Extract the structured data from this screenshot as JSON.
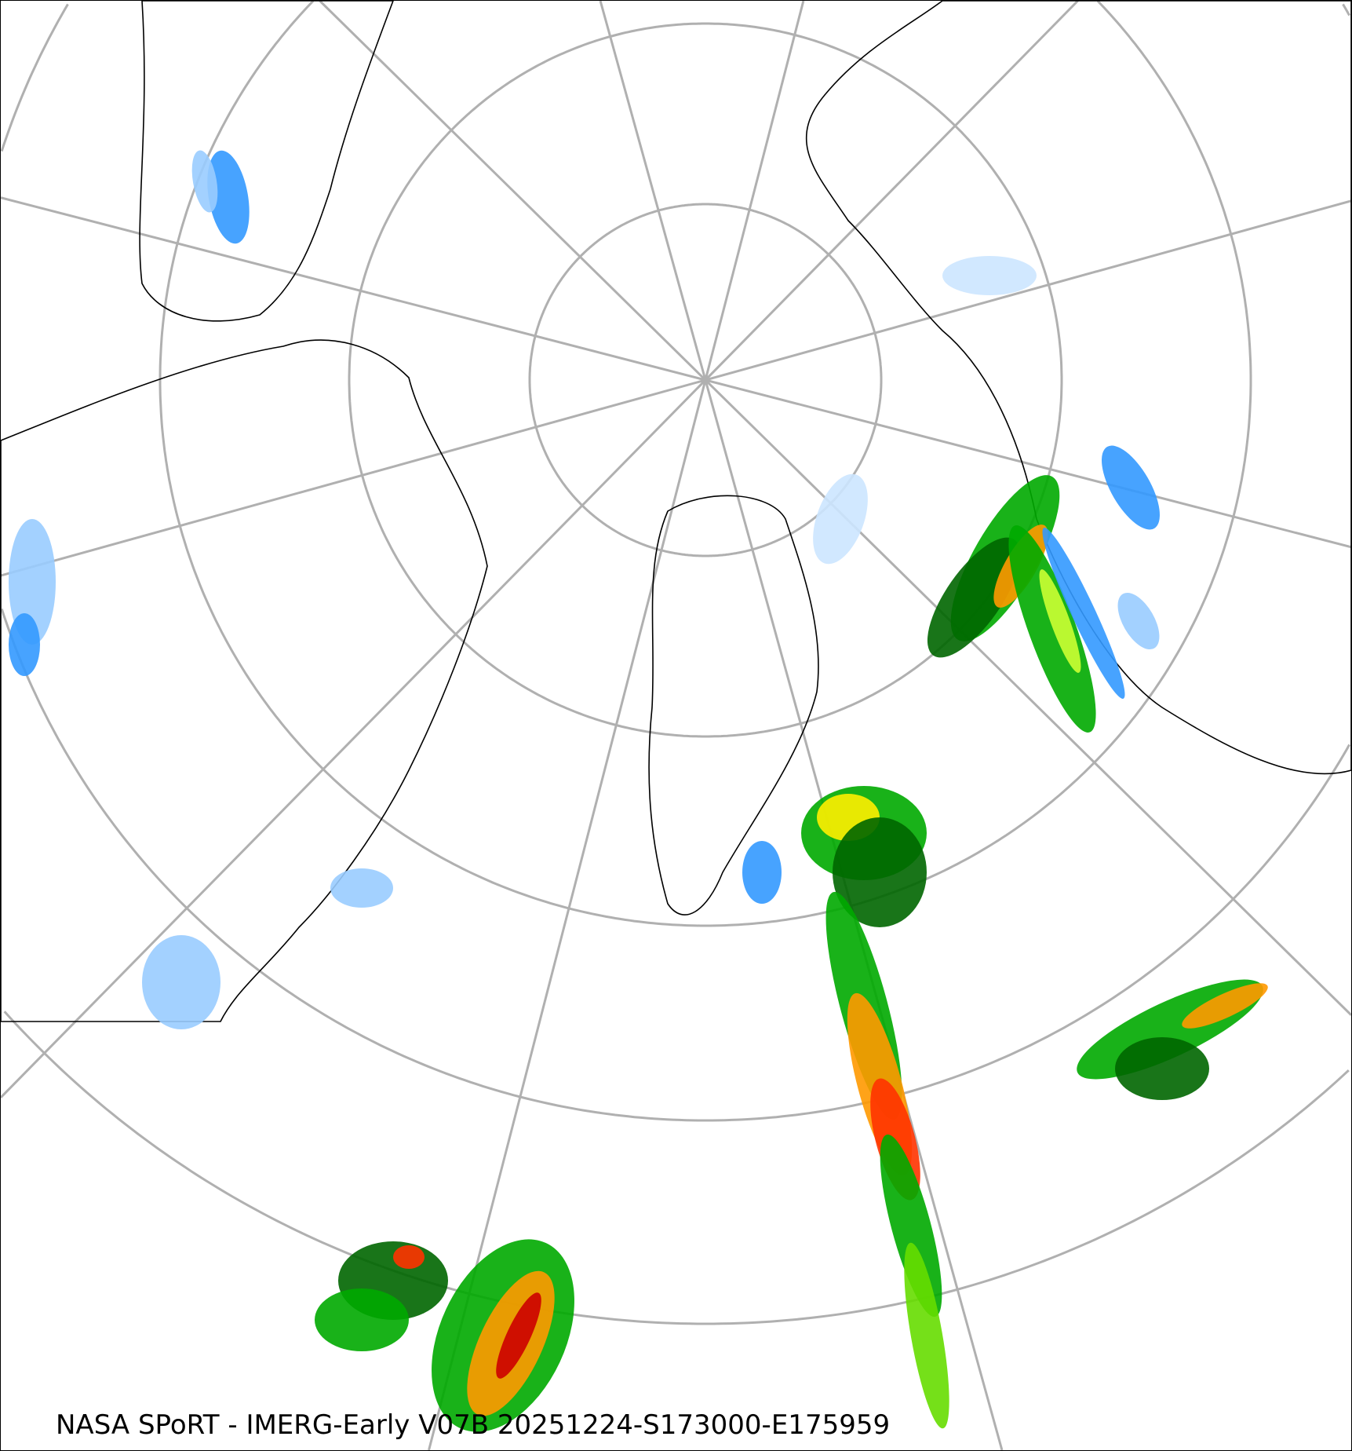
{
  "map": {
    "caption": "NASA SPoRT - IMERG-Early V07B 20251224-S173000-E175959",
    "projection": "north polar stereographic",
    "graticule_color": "#b0b0b0",
    "coastline_color": "#000000",
    "precip_colors": [
      "#cce5ff",
      "#99ccff",
      "#3399ff",
      "#006600",
      "#00aa00",
      "#66dd00",
      "#ccff33",
      "#ffee00",
      "#ff9900",
      "#ff3300",
      "#cc0000"
    ]
  }
}
